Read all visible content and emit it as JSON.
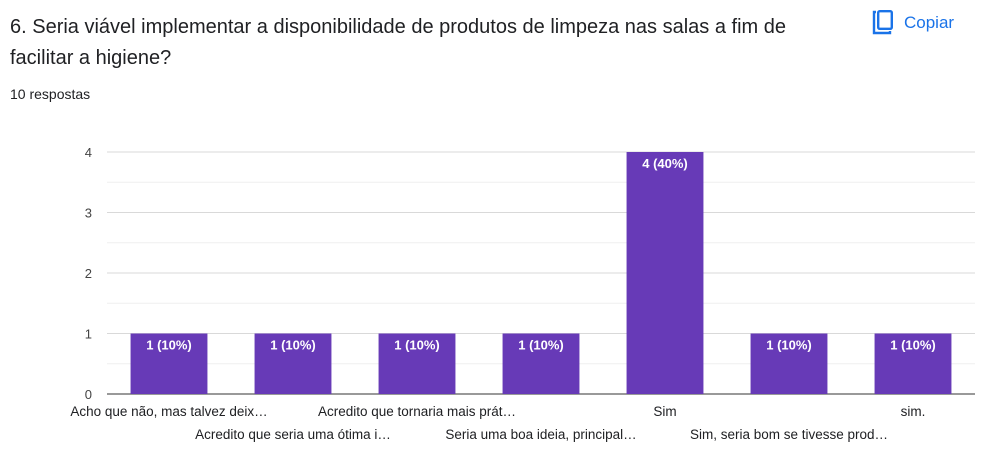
{
  "question": {
    "title": "6. Seria viável implementar a disponibilidade de produtos de limpeza nas salas a fim de facilitar a higiene?",
    "responses": "10 respostas"
  },
  "copy_button": {
    "label": "Copiar",
    "icon": "copy-icon"
  },
  "colors": {
    "bar": "#673ab7",
    "accent": "#1a73e8",
    "grid": "#e8e8e8"
  },
  "chart_data": {
    "type": "bar",
    "categories": [
      "Acho que não, mas talvez deix…",
      "Acredito que seria uma ótima i…",
      "Acredito que tornaria mais prát…",
      "Seria uma boa ideia, principal…",
      "Sim",
      "Sim, seria bom se tivesse prod…",
      "sim."
    ],
    "values": [
      1,
      1,
      1,
      1,
      4,
      1,
      1
    ],
    "data_labels": [
      "1 (10%)",
      "1 (10%)",
      "1 (10%)",
      "1 (10%)",
      "4 (40%)",
      "1 (10%)",
      "1 (10%)"
    ],
    "y_ticks": [
      "0",
      "1",
      "2",
      "3",
      "4"
    ],
    "ylim": [
      0,
      4
    ],
    "grid": true,
    "title": "",
    "xlabel": "",
    "ylabel": ""
  }
}
